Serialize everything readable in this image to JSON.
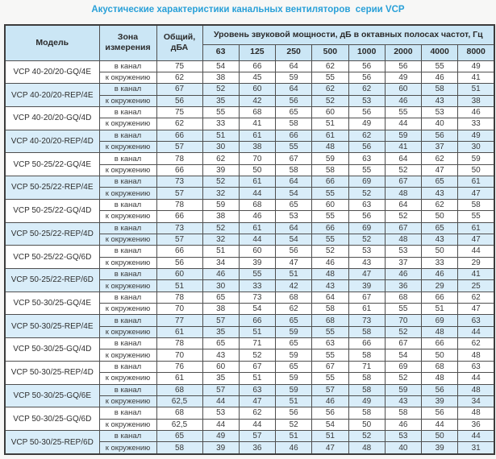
{
  "page": {
    "title": "Акустические характеристики канальных вентиляторов  серии VCP"
  },
  "colors": {
    "title": "#29a0d8",
    "header_bg": "#cbe6f5",
    "band_bg": "#d9edf9",
    "border": "#4f4f4f"
  },
  "table": {
    "col_model": "Модель",
    "col_zone": "Зона измерения",
    "col_total": "Общий, дБА",
    "octave_header": "Уровень звуковой мощности, дБ в октавных полосах частот, Гц",
    "frequencies": [
      "63",
      "125",
      "250",
      "500",
      "1000",
      "2000",
      "4000",
      "8000"
    ],
    "zone_in_duct": "в канал",
    "zone_ambient": "к окружению",
    "models": [
      {
        "name": "VCP 40-20/20-GQ/4E",
        "highlight": false,
        "in_duct": {
          "total": "75",
          "levels": [
            54,
            66,
            64,
            62,
            56,
            56,
            55,
            49
          ]
        },
        "ambient": {
          "total": "62",
          "levels": [
            38,
            45,
            59,
            55,
            56,
            49,
            46,
            41
          ]
        }
      },
      {
        "name": "VCP 40-20/20-REP/4E",
        "highlight": true,
        "in_duct": {
          "total": "67",
          "levels": [
            52,
            60,
            64,
            62,
            62,
            60,
            58,
            51
          ]
        },
        "ambient": {
          "total": "56",
          "levels": [
            35,
            42,
            56,
            52,
            53,
            46,
            43,
            38
          ]
        }
      },
      {
        "name": "VCP 40-20/20-GQ/4D",
        "highlight": false,
        "in_duct": {
          "total": "75",
          "levels": [
            55,
            68,
            65,
            60,
            56,
            55,
            53,
            46
          ]
        },
        "ambient": {
          "total": "62",
          "levels": [
            33,
            41,
            58,
            51,
            49,
            44,
            40,
            33
          ]
        }
      },
      {
        "name": "VCP 40-20/20-REP/4D",
        "highlight": true,
        "in_duct": {
          "total": "66",
          "levels": [
            51,
            61,
            66,
            61,
            62,
            59,
            56,
            49
          ]
        },
        "ambient": {
          "total": "57",
          "levels": [
            30,
            38,
            55,
            48,
            56,
            41,
            37,
            30
          ]
        }
      },
      {
        "name": "VCP 50-25/22-GQ/4E",
        "highlight": false,
        "in_duct": {
          "total": "78",
          "levels": [
            62,
            70,
            67,
            59,
            63,
            64,
            62,
            59
          ]
        },
        "ambient": {
          "total": "66",
          "levels": [
            39,
            50,
            58,
            58,
            55,
            52,
            47,
            50
          ]
        }
      },
      {
        "name": "VCP 50-25/22-REP/4E",
        "highlight": true,
        "in_duct": {
          "total": "73",
          "levels": [
            52,
            61,
            64,
            66,
            69,
            67,
            65,
            61
          ]
        },
        "ambient": {
          "total": "57",
          "levels": [
            32,
            44,
            54,
            55,
            52,
            48,
            43,
            47
          ]
        }
      },
      {
        "name": "VCP 50-25/22-GQ/4D",
        "highlight": false,
        "in_duct": {
          "total": "78",
          "levels": [
            59,
            68,
            65,
            60,
            63,
            64,
            62,
            58
          ]
        },
        "ambient": {
          "total": "66",
          "levels": [
            38,
            46,
            53,
            55,
            56,
            52,
            50,
            55
          ]
        }
      },
      {
        "name": "VCP 50-25/22-REP/4D",
        "highlight": true,
        "in_duct": {
          "total": "73",
          "levels": [
            52,
            61,
            64,
            66,
            69,
            67,
            65,
            61
          ]
        },
        "ambient": {
          "total": "57",
          "levels": [
            32,
            44,
            54,
            55,
            52,
            48,
            43,
            47
          ]
        }
      },
      {
        "name": "VCP 50-25/22-GQ/6D",
        "highlight": false,
        "in_duct": {
          "total": "66",
          "levels": [
            51,
            60,
            56,
            52,
            53,
            53,
            50,
            44
          ]
        },
        "ambient": {
          "total": "56",
          "levels": [
            34,
            39,
            47,
            46,
            43,
            37,
            33,
            29
          ]
        }
      },
      {
        "name": "VCP 50-25/22-REP/6D",
        "highlight": true,
        "in_duct": {
          "total": "60",
          "levels": [
            46,
            55,
            51,
            48,
            47,
            46,
            46,
            41
          ]
        },
        "ambient": {
          "total": "51",
          "levels": [
            30,
            33,
            42,
            43,
            39,
            36,
            29,
            25
          ]
        }
      },
      {
        "name": "VCP 50-30/25-GQ/4E",
        "highlight": false,
        "in_duct": {
          "total": "78",
          "levels": [
            65,
            73,
            68,
            64,
            67,
            68,
            66,
            62
          ]
        },
        "ambient": {
          "total": "70",
          "levels": [
            38,
            54,
            62,
            58,
            61,
            55,
            51,
            47
          ]
        }
      },
      {
        "name": "VCP 50-30/25-REP/4E",
        "highlight": true,
        "in_duct": {
          "total": "77",
          "levels": [
            57,
            66,
            65,
            68,
            73,
            70,
            69,
            63
          ]
        },
        "ambient": {
          "total": "61",
          "levels": [
            35,
            51,
            59,
            55,
            58,
            52,
            48,
            44
          ]
        }
      },
      {
        "name": "VCP 50-30/25-GQ/4D",
        "highlight": false,
        "in_duct": {
          "total": "78",
          "levels": [
            65,
            71,
            65,
            63,
            66,
            67,
            66,
            62
          ]
        },
        "ambient": {
          "total": "70",
          "levels": [
            43,
            52,
            59,
            55,
            58,
            54,
            50,
            48
          ]
        }
      },
      {
        "name": "VCP 50-30/25-REP/4D",
        "highlight": false,
        "in_duct": {
          "total": "76",
          "levels": [
            60,
            67,
            65,
            67,
            71,
            69,
            68,
            63
          ]
        },
        "ambient": {
          "total": "61",
          "levels": [
            35,
            51,
            59,
            55,
            58,
            52,
            48,
            44
          ]
        }
      },
      {
        "name": "VCP 50-30/25-GQ/6E",
        "highlight": true,
        "in_duct": {
          "total": "68",
          "levels": [
            57,
            63,
            59,
            57,
            58,
            59,
            56,
            48
          ]
        },
        "ambient": {
          "total": "62,5",
          "levels": [
            44,
            47,
            51,
            46,
            49,
            43,
            39,
            34
          ]
        }
      },
      {
        "name": "VCP 50-30/25-GQ/6D",
        "highlight": false,
        "in_duct": {
          "total": "68",
          "levels": [
            53,
            62,
            56,
            56,
            58,
            58,
            56,
            48
          ]
        },
        "ambient": {
          "total": "62,5",
          "levels": [
            44,
            44,
            52,
            54,
            50,
            46,
            44,
            36
          ]
        }
      },
      {
        "name": "VCP 50-30/25-REP/6D",
        "highlight": true,
        "in_duct": {
          "total": "65",
          "levels": [
            49,
            57,
            51,
            51,
            52,
            53,
            50,
            44
          ]
        },
        "ambient": {
          "total": "58",
          "levels": [
            39,
            36,
            46,
            47,
            48,
            40,
            39,
            31
          ]
        }
      }
    ]
  }
}
